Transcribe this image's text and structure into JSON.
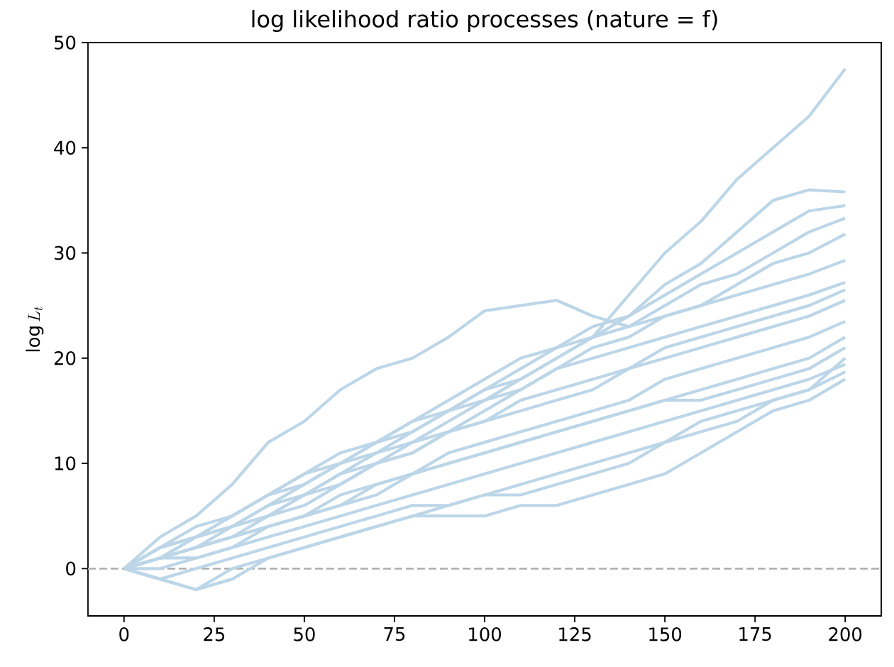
{
  "chart_data": {
    "type": "line",
    "title": "log likelihood ratio processes (nature = f)",
    "ylabel": "\\log L_t",
    "x": [
      0,
      10,
      20,
      30,
      40,
      50,
      60,
      70,
      80,
      90,
      100,
      110,
      120,
      130,
      140,
      150,
      160,
      170,
      180,
      190,
      200
    ],
    "xlim": [
      -10,
      210
    ],
    "ylim": [
      -4.5,
      50
    ],
    "xticks": [
      0,
      25,
      50,
      75,
      100,
      125,
      150,
      175,
      200
    ],
    "yticks": [
      0,
      10,
      20,
      30,
      40,
      50
    ],
    "line_style": "solid",
    "ref_lines": [
      {
        "axis": "y",
        "value": 0,
        "color": "#b3b3b3",
        "line_style": "dashed"
      }
    ],
    "series": [
      {
        "color": "#bcd6e8",
        "values": [
          0,
          2,
          3,
          5,
          7,
          9,
          10,
          12,
          13,
          15,
          16,
          18,
          20,
          22,
          26,
          30,
          33,
          37,
          40,
          43,
          47.5
        ]
      },
      {
        "color": "#bcd6e8",
        "values": [
          0,
          3,
          5,
          8,
          12,
          14,
          17,
          19,
          20,
          22,
          24.5,
          25,
          25.5,
          24,
          23,
          24,
          25,
          26,
          27,
          28,
          29.3
        ]
      },
      {
        "color": "#bcd6e8",
        "values": [
          0,
          1,
          3,
          4,
          6,
          8,
          10,
          11,
          13,
          15,
          17,
          19,
          21,
          22,
          24,
          27,
          29,
          32,
          35,
          36,
          35.8
        ]
      },
      {
        "color": "#bcd6e8",
        "values": [
          0,
          2,
          3,
          5,
          7,
          9,
          11,
          12,
          14,
          16,
          18,
          20,
          21,
          23,
          24,
          26,
          28,
          30,
          32,
          34,
          34.5
        ]
      },
      {
        "color": "#bcd6e8",
        "values": [
          0,
          2,
          4,
          5,
          7,
          8,
          10,
          12,
          14,
          15,
          17,
          18,
          20,
          22,
          23,
          25,
          27,
          28,
          30,
          32,
          33.3
        ]
      },
      {
        "color": "#bcd6e8",
        "values": [
          0,
          1,
          2,
          4,
          5,
          7,
          9,
          11,
          12,
          14,
          16,
          17,
          19,
          21,
          22,
          24,
          25,
          27,
          29,
          30,
          31.8
        ]
      },
      {
        "color": "#bcd6e8",
        "values": [
          0,
          1,
          2,
          3,
          5,
          7,
          8,
          10,
          11,
          13,
          15,
          17,
          19,
          20,
          21,
          22,
          23,
          24,
          25,
          26,
          27.2
        ]
      },
      {
        "color": "#bcd6e8",
        "values": [
          0,
          2,
          3,
          4,
          6,
          7,
          9,
          10,
          12,
          13,
          14,
          16,
          17,
          18,
          19,
          21,
          22,
          23,
          24,
          25,
          26.5
        ]
      },
      {
        "color": "#bcd6e8",
        "values": [
          0,
          1,
          3,
          4,
          5,
          6,
          8,
          10,
          11,
          13,
          14,
          15,
          16,
          17,
          19,
          20,
          21,
          22,
          23,
          24,
          25.5
        ]
      },
      {
        "color": "#bcd6e8",
        "values": [
          0,
          1,
          2,
          3,
          4,
          5,
          7,
          8,
          9,
          11,
          12,
          13,
          14,
          15,
          16,
          18,
          19,
          20,
          21,
          22,
          23.5
        ]
      },
      {
        "color": "#bcd6e8",
        "values": [
          0,
          1,
          1,
          2,
          4,
          5,
          6,
          8,
          9,
          10,
          11,
          12,
          13,
          14,
          15,
          16,
          17,
          18,
          19,
          20,
          22
        ]
      },
      {
        "color": "#bcd6e8",
        "values": [
          0,
          1,
          2,
          3,
          4,
          5,
          6,
          7,
          9,
          10,
          11,
          12,
          13,
          14,
          15,
          16,
          16,
          17,
          18,
          19,
          21
        ]
      },
      {
        "color": "#bcd6e8",
        "values": [
          0,
          0,
          1,
          2,
          3,
          4,
          5,
          6,
          7,
          8,
          9,
          10,
          11,
          12,
          13,
          14,
          15,
          16,
          17,
          18,
          19.4
        ]
      },
      {
        "color": "#bcd6e8",
        "values": [
          0,
          -1,
          0,
          1,
          2,
          3,
          4,
          5,
          6,
          6,
          7,
          8,
          9,
          10,
          11,
          12,
          14,
          15,
          16,
          17,
          18.7
        ]
      },
      {
        "color": "#bcd6e8",
        "values": [
          0,
          -1,
          -2,
          0,
          1,
          2,
          3,
          4,
          5,
          5,
          5,
          6,
          6,
          7,
          8,
          9,
          11,
          13,
          15,
          16,
          18
        ]
      },
      {
        "color": "#bcd6e8",
        "values": [
          0,
          -1,
          -2,
          -1,
          1,
          2,
          3,
          4,
          5,
          6,
          7,
          7,
          8,
          9,
          10,
          12,
          13,
          14,
          16,
          17,
          20
        ]
      }
    ]
  }
}
